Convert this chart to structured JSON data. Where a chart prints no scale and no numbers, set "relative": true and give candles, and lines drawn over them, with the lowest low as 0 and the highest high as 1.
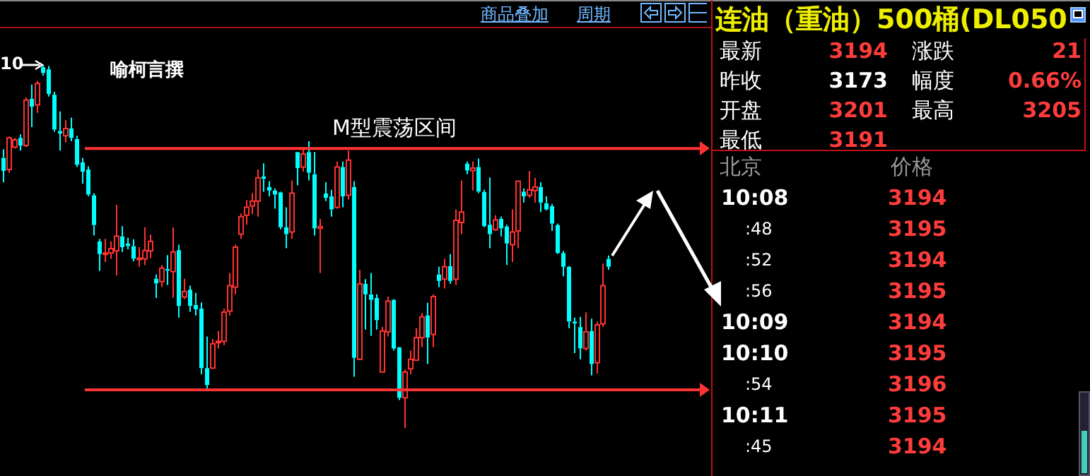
{
  "chart_data": [
    {
      "type": "candlestick",
      "relative": true,
      "categories": [
        null,
        null,
        null,
        null,
        null,
        null,
        null,
        null,
        null,
        null,
        null,
        null,
        null,
        null,
        null,
        null,
        null,
        null,
        null,
        null,
        null,
        null,
        null,
        null,
        null,
        null,
        null,
        null,
        null,
        null,
        null,
        null,
        null,
        null,
        null,
        null,
        null,
        null,
        null,
        null,
        null,
        null,
        null,
        null,
        null,
        null,
        null,
        null,
        null,
        null,
        null,
        null,
        null,
        null,
        null,
        null,
        null,
        null,
        null,
        null,
        null,
        null,
        null,
        null,
        null,
        null,
        null,
        null,
        null,
        null,
        null,
        null,
        null,
        null,
        null,
        null,
        null,
        null,
        null,
        null,
        null,
        null,
        null,
        null,
        null,
        null,
        null,
        null,
        null,
        null,
        null,
        null,
        null,
        null,
        null,
        null,
        null,
        null,
        null,
        null,
        null,
        null,
        null,
        null,
        null,
        null,
        null,
        null
      ],
      "ohlc": [
        [
          0.744,
          0.768,
          0.677,
          0.708
        ],
        [
          0.712,
          0.803,
          0.703,
          0.799
        ],
        [
          0.774,
          0.799,
          0.77,
          0.794
        ],
        [
          0.799,
          0.809,
          0.764,
          0.778
        ],
        [
          0.778,
          0.911,
          0.774,
          0.903
        ],
        [
          0.907,
          0.946,
          0.829,
          0.885
        ],
        [
          0.89,
          0.956,
          0.868,
          0.949
        ],
        [
          0.994,
          1,
          0.971,
          0.978
        ],
        [
          0.988,
          0.997,
          0.913,
          0.92
        ],
        [
          0.918,
          0.926,
          0.816,
          0.822
        ],
        [
          0.818,
          0.872,
          0.764,
          0.811
        ],
        [
          0.805,
          0.848,
          0.787,
          0.825
        ],
        [
          0.825,
          0.855,
          0.79,
          0.799
        ],
        [
          0.796,
          0.805,
          0.719,
          0.725
        ],
        [
          0.732,
          0.744,
          0.673,
          0.706
        ],
        [
          0.712,
          0.721,
          0.638,
          0.643
        ],
        [
          0.641,
          0.647,
          0.53,
          0.559
        ],
        [
          0.514,
          0.521,
          0.433,
          0.479
        ],
        [
          0.479,
          0.521,
          0.457,
          0.482
        ],
        [
          0.482,
          0.514,
          0.466,
          0.494
        ],
        [
          0.488,
          0.615,
          0.42,
          0.528
        ],
        [
          0.528,
          0.556,
          0.485,
          0.498
        ],
        [
          0.508,
          0.524,
          0.492,
          0.501
        ],
        [
          0.501,
          0.52,
          0.459,
          0.466
        ],
        [
          0.464,
          0.498,
          0.444,
          0.468
        ],
        [
          0.466,
          0.553,
          0.449,
          0.489
        ],
        [
          0.488,
          0.533,
          0.468,
          0.514
        ],
        [
          0.411,
          0.423,
          0.358,
          0.398
        ],
        [
          0.403,
          0.449,
          0.388,
          0.44
        ],
        [
          0.438,
          0.476,
          0.394,
          0.433
        ],
        [
          0.431,
          0.553,
          0.359,
          0.485
        ],
        [
          0.49,
          0.505,
          0.304,
          0.336
        ],
        [
          0.361,
          0.411,
          0.355,
          0.376
        ],
        [
          0.381,
          0.392,
          0.32,
          0.336
        ],
        [
          0.339,
          0.372,
          0.31,
          0.327
        ],
        [
          0.329,
          0.346,
          0.148,
          0.165
        ],
        [
          0.165,
          0.252,
          0.109,
          0.118
        ],
        [
          0.165,
          0.245,
          0.163,
          0.232
        ],
        [
          0.235,
          0.267,
          0.219,
          0.239
        ],
        [
          0.239,
          0.329,
          0.228,
          0.319
        ],
        [
          0.322,
          0.427,
          0.31,
          0.392
        ],
        [
          0.388,
          0.505,
          0.368,
          0.498
        ],
        [
          0.534,
          0.591,
          0.521,
          0.582
        ],
        [
          0.586,
          0.628,
          0.56,
          0.608
        ],
        [
          0.612,
          0.647,
          0.589,
          0.625
        ],
        [
          0.625,
          0.712,
          0.582,
          0.689
        ],
        [
          0.693,
          0.729,
          0.651,
          0.686
        ],
        [
          0.664,
          0.68,
          0.638,
          0.654
        ],
        [
          0.654,
          0.66,
          0.604,
          0.643
        ],
        [
          0.649,
          0.651,
          0.547,
          0.553
        ],
        [
          0.553,
          0.608,
          0.495,
          0.534
        ],
        [
          0.54,
          0.682,
          0.521,
          0.647
        ],
        [
          0.76,
          0.76,
          0.669,
          0.716
        ],
        [
          0.719,
          0.773,
          0.706,
          0.755
        ],
        [
          0.76,
          0.79,
          0.682,
          0.703
        ],
        [
          0.699,
          0.76,
          0.53,
          0.55
        ],
        [
          0.55,
          0.576,
          0.427,
          0.555
        ],
        [
          0.646,
          0.677,
          0.625,
          0.634
        ],
        [
          0.638,
          0.656,
          0.582,
          0.602
        ],
        [
          0.608,
          0.734,
          0.604,
          0.719
        ],
        [
          0.719,
          0.734,
          0.608,
          0.638
        ],
        [
          0.641,
          0.764,
          0.63,
          0.738
        ],
        [
          0.664,
          0.68,
          0.141,
          0.193
        ],
        [
          0.189,
          0.436,
          0.187,
          0.397
        ],
        [
          0.397,
          0.41,
          0.271,
          0.368
        ],
        [
          0.368,
          0.427,
          0.254,
          0.353
        ],
        [
          0.358,
          0.368,
          0.271,
          0.297
        ],
        [
          0.154,
          0.278,
          0.154,
          0.267
        ],
        [
          0.265,
          0.362,
          0.252,
          0.349
        ],
        [
          0.353,
          0.355,
          0.213,
          0.219
        ],
        [
          0.222,
          0.223,
          0.077,
          0.083
        ],
        [
          0.083,
          0.161,
          0,
          0.154
        ],
        [
          0.163,
          0.213,
          0.148,
          0.189
        ],
        [
          0.187,
          0.275,
          0.187,
          0.249
        ],
        [
          0.249,
          0.316,
          0.223,
          0.306
        ],
        [
          0.31,
          0.345,
          0.176,
          0.249
        ],
        [
          0.258,
          0.368,
          0.223,
          0.362
        ],
        [
          0.423,
          0.444,
          0.388,
          0.405
        ],
        [
          0.41,
          0.466,
          0.384,
          0.444
        ],
        [
          0.446,
          0.479,
          0.397,
          0.405
        ],
        [
          0.41,
          0.602,
          0.394,
          0.572
        ],
        [
          0.566,
          0.682,
          0.534,
          0.595
        ],
        [
          0.728,
          0.734,
          0.699,
          0.709
        ],
        [
          0.709,
          0.734,
          0.654,
          0.716
        ],
        [
          0.719,
          0.742,
          0.647,
          0.651
        ],
        [
          0.65,
          0.656,
          0.553,
          0.556
        ],
        [
          0.56,
          0.69,
          0.495,
          0.534
        ],
        [
          0.546,
          0.586,
          0.543,
          0.573
        ],
        [
          0.576,
          0.582,
          0.527,
          0.55
        ],
        [
          0.555,
          0.56,
          0.449,
          0.508
        ],
        [
          0.505,
          0.602,
          0.457,
          0.54
        ],
        [
          0.543,
          0.68,
          0.495,
          0.68
        ],
        [
          0.651,
          0.66,
          0.621,
          0.638
        ],
        [
          0.641,
          0.708,
          0.634,
          0.656
        ],
        [
          0.654,
          0.689,
          0.621,
          0.664
        ],
        [
          0.664,
          0.677,
          0.595,
          0.621
        ],
        [
          0.619,
          0.638,
          0.599,
          0.602
        ],
        [
          0.611,
          0.617,
          0.543,
          0.563
        ],
        [
          0.559,
          0.563,
          0.479,
          0.482
        ],
        [
          0.482,
          0.488,
          0.418,
          0.444
        ],
        [
          0.444,
          0.446,
          0.275,
          0.293
        ],
        [
          0.293,
          0.304,
          0.206,
          0.288
        ],
        [
          0.278,
          0.306,
          0.189,
          0.219
        ],
        [
          0.219,
          0.319,
          0.213,
          0.265
        ],
        [
          0.267,
          0.301,
          0.145,
          0.176
        ],
        [
          0.18,
          0.293,
          0.15,
          0.284
        ],
        [
          0.287,
          0.453,
          0.278,
          0.392
        ],
        [
          0.466,
          0.475,
          0.436,
          0.444
        ]
      ],
      "colors": [
        "#00ffff",
        "#ff3232",
        "#ff3232",
        "#00ffff",
        "#ff3232",
        "#00ffff",
        "#ff3232",
        "#00ffff",
        "#00ffff",
        "#00ffff",
        "#00ffff",
        "#ff3232",
        "#00ffff",
        "#00ffff",
        "#00ffff",
        "#00ffff",
        "#00ffff",
        "#00ffff",
        "#ff3232",
        "#ff3232",
        "#ff3232",
        "#00ffff",
        "#00ffff",
        "#00ffff",
        "#ff3232",
        "#ff3232",
        "#ff3232",
        "#00ffff",
        "#ff3232",
        "#00ffff",
        "#ff3232",
        "#00ffff",
        "#ff3232",
        "#00ffff",
        "#00ffff",
        "#00ffff",
        "#00ffff",
        "#ff3232",
        "#ff3232",
        "#ff3232",
        "#ff3232",
        "#ff3232",
        "#ff3232",
        "#ff3232",
        "#ff3232",
        "#ff3232",
        "#00ffff",
        "#00ffff",
        "#00ffff",
        "#00ffff",
        "#00ffff",
        "#ff3232",
        "#00ffff",
        "#ff3232",
        "#00ffff",
        "#00ffff",
        "#ff3232",
        "#00ffff",
        "#00ffff",
        "#ff3232",
        "#00ffff",
        "#ff3232",
        "#00ffff",
        "#ff3232",
        "#00ffff",
        "#00ffff",
        "#00ffff",
        "#ff3232",
        "#ff3232",
        "#00ffff",
        "#00ffff",
        "#ff3232",
        "#ff3232",
        "#ff3232",
        "#ff3232",
        "#00ffff",
        "#ff3232",
        "#00ffff",
        "#ff3232",
        "#00ffff",
        "#ff3232",
        "#ff3232",
        "#00ffff",
        "#ff3232",
        "#00ffff",
        "#00ffff",
        "#00ffff",
        "#ff3232",
        "#00ffff",
        "#00ffff",
        "#ff3232",
        "#ff3232",
        "#00ffff",
        "#ff3232",
        "#ff3232",
        "#00ffff",
        "#00ffff",
        "#00ffff",
        "#00ffff",
        "#00ffff",
        "#00ffff",
        "#00ffff",
        "#00ffff",
        "#ff3232",
        "#00ffff",
        "#ff3232",
        "#ff3232",
        "#00ffff"
      ],
      "ref_lines": [
        {
          "axis": "y",
          "value": 0.77,
          "label": "M型震荡区间",
          "color": "#ff3333"
        },
        {
          "axis": "y",
          "value": 0.105,
          "color": "#ff3333"
        }
      ],
      "annotations": [
        "10",
        "喻柯言撰"
      ]
    },
    {
      "type": "other",
      "title": "连油（重油）500桶(DL050",
      "annotations": [
        "商品叠加",
        "周期",
        "最新",
        "3194",
        "涨跌",
        "21",
        "昨收",
        "3173",
        "幅度",
        "0.66%",
        "开盘",
        "3201",
        "最高",
        "3205",
        "最低",
        "3191",
        "北京",
        "价格",
        "10:08",
        "3194",
        ":48",
        "3195",
        ":52",
        "3194",
        ":56",
        "3195",
        "10:09",
        "3194",
        "10:10",
        "3195",
        ":54",
        "3196",
        "10:11",
        "3195",
        ":45",
        "3194"
      ]
    }
  ]
}
